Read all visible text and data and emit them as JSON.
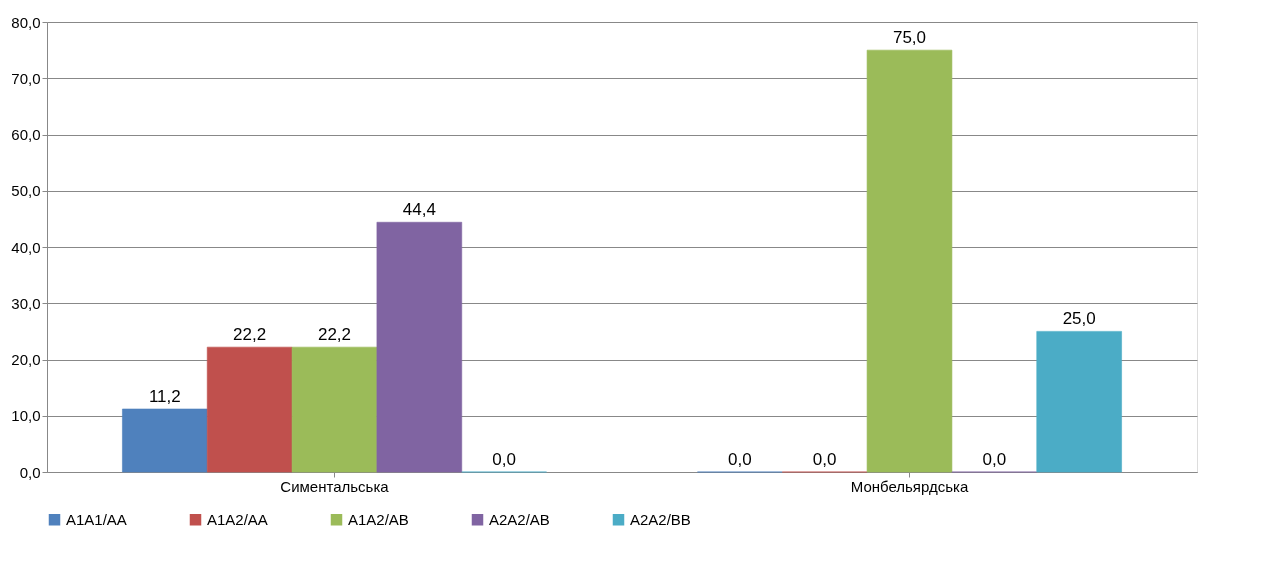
{
  "chart_data": {
    "type": "bar",
    "categories": [
      "Симентальська",
      "Монбельярдська"
    ],
    "series": [
      {
        "name": "A1A1/AA",
        "color": "#4f81bd",
        "values": [
          11.2,
          0.0
        ],
        "value_labels": [
          "11,2",
          "0,0"
        ]
      },
      {
        "name": "A1A2/AA",
        "color": "#c0504d",
        "values": [
          22.2,
          0.0
        ],
        "value_labels": [
          "22,2",
          "0,0"
        ]
      },
      {
        "name": "A1A2/AB",
        "color": "#9bbb59",
        "values": [
          22.2,
          75.0
        ],
        "value_labels": [
          "22,2",
          "75,0"
        ]
      },
      {
        "name": "A2A2/AB",
        "color": "#8064a2",
        "values": [
          44.4,
          0.0
        ],
        "value_labels": [
          "44,4",
          "0,0"
        ]
      },
      {
        "name": "A2A2/BB",
        "color": "#4bacc6",
        "values": [
          0.0,
          25.0
        ],
        "value_labels": [
          "0,0",
          "25,0"
        ]
      }
    ],
    "ylim": [
      0,
      80
    ],
    "yticks": [
      {
        "value": 0,
        "label": "0,0"
      },
      {
        "value": 10,
        "label": "10,0"
      },
      {
        "value": 20,
        "label": "20,0"
      },
      {
        "value": 30,
        "label": "30,0"
      },
      {
        "value": 40,
        "label": "40,0"
      },
      {
        "value": 50,
        "label": "50,0"
      },
      {
        "value": 60,
        "label": "60,0"
      },
      {
        "value": 70,
        "label": "70,0"
      },
      {
        "value": 80,
        "label": "80,0"
      }
    ],
    "grid": "y",
    "legend": "bottom"
  }
}
